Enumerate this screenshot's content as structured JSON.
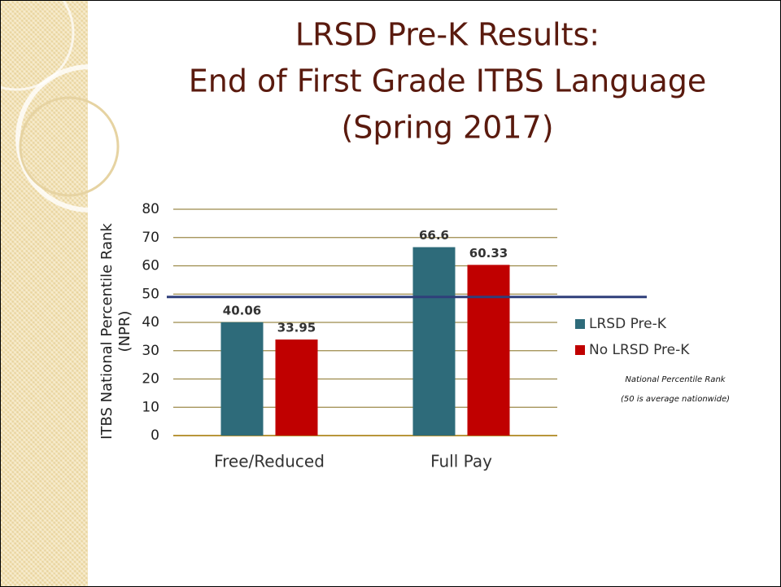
{
  "chart_data": {
    "type": "bar",
    "title": [
      "LRSD Pre-K Results:",
      "End of First Grade ITBS Language",
      "(Spring 2017)"
    ],
    "y_label": "ITBS National Percentile Rank (NPR)",
    "categories": [
      "Free/Reduced",
      "Full Pay"
    ],
    "series": [
      {
        "name": "LRSD Pre-K",
        "color": "#2e6b7a",
        "values": [
          40.06,
          66.6
        ]
      },
      {
        "name": "No LRSD Pre-K",
        "color": "#c00000",
        "values": [
          33.95,
          60.33
        ]
      }
    ],
    "ylim": [
      0,
      80
    ],
    "yticks": [
      0,
      10,
      20,
      30,
      40,
      50,
      60,
      70,
      80
    ],
    "grid": true,
    "legend": "right",
    "reference_line": {
      "value": 49,
      "color": "#2f3f7a"
    },
    "annotations": [
      "National Percentile Rank",
      "(50 is average nationwide)"
    ]
  }
}
